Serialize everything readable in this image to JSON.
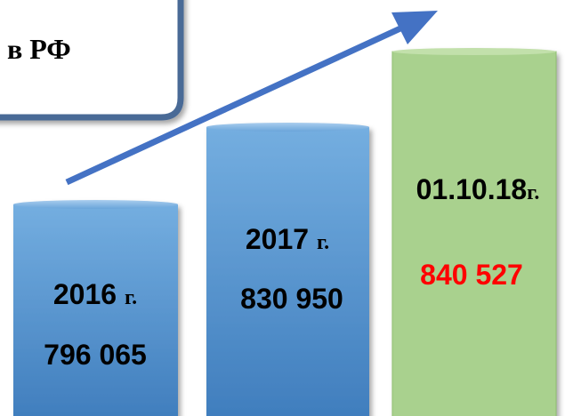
{
  "header": {
    "text": "в РФ"
  },
  "columns": [
    {
      "year": "2016",
      "unit": "г.",
      "value": "796 065"
    },
    {
      "year": "2017",
      "unit": "г.",
      "value": "830 950"
    },
    {
      "year": "01.10.18",
      "unit": "г.",
      "value": "840 527"
    }
  ]
}
